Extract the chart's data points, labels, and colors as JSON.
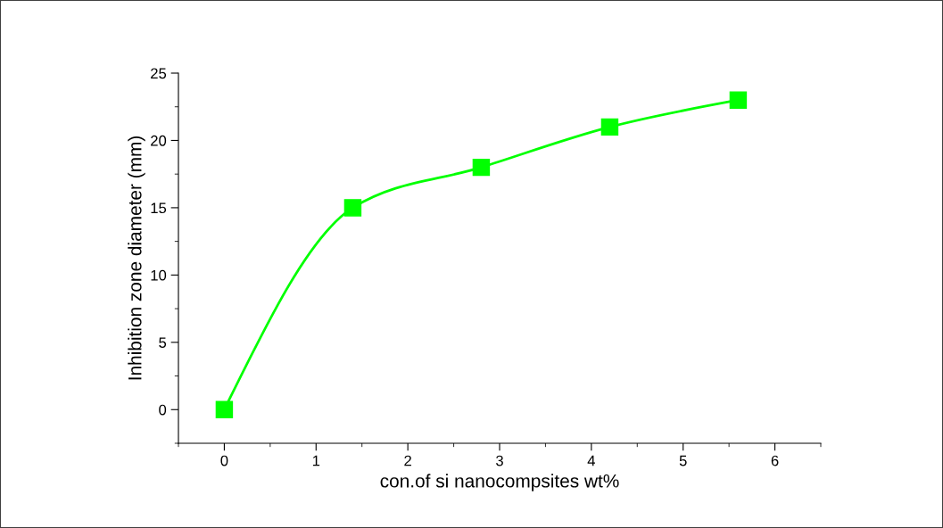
{
  "chart_data": {
    "type": "line",
    "xlabel": "con.of si nanocompsites wt%",
    "ylabel": "Inhibition zone diameter (mm)",
    "x": [
      0,
      1.4,
      2.8,
      4.2,
      5.6
    ],
    "series": [
      {
        "color": "#00ff00",
        "values": [
          0,
          15,
          18,
          21,
          23
        ]
      }
    ],
    "xlim": [
      -0.5,
      6.5
    ],
    "xticks": [
      0,
      1,
      2,
      3,
      4,
      5,
      6
    ],
    "ylim": [
      -2.5,
      25
    ],
    "yticks": [
      0,
      5,
      10,
      15,
      20,
      25
    ],
    "marker": "square",
    "line_style": "solid",
    "grid": false,
    "legend": false
  }
}
